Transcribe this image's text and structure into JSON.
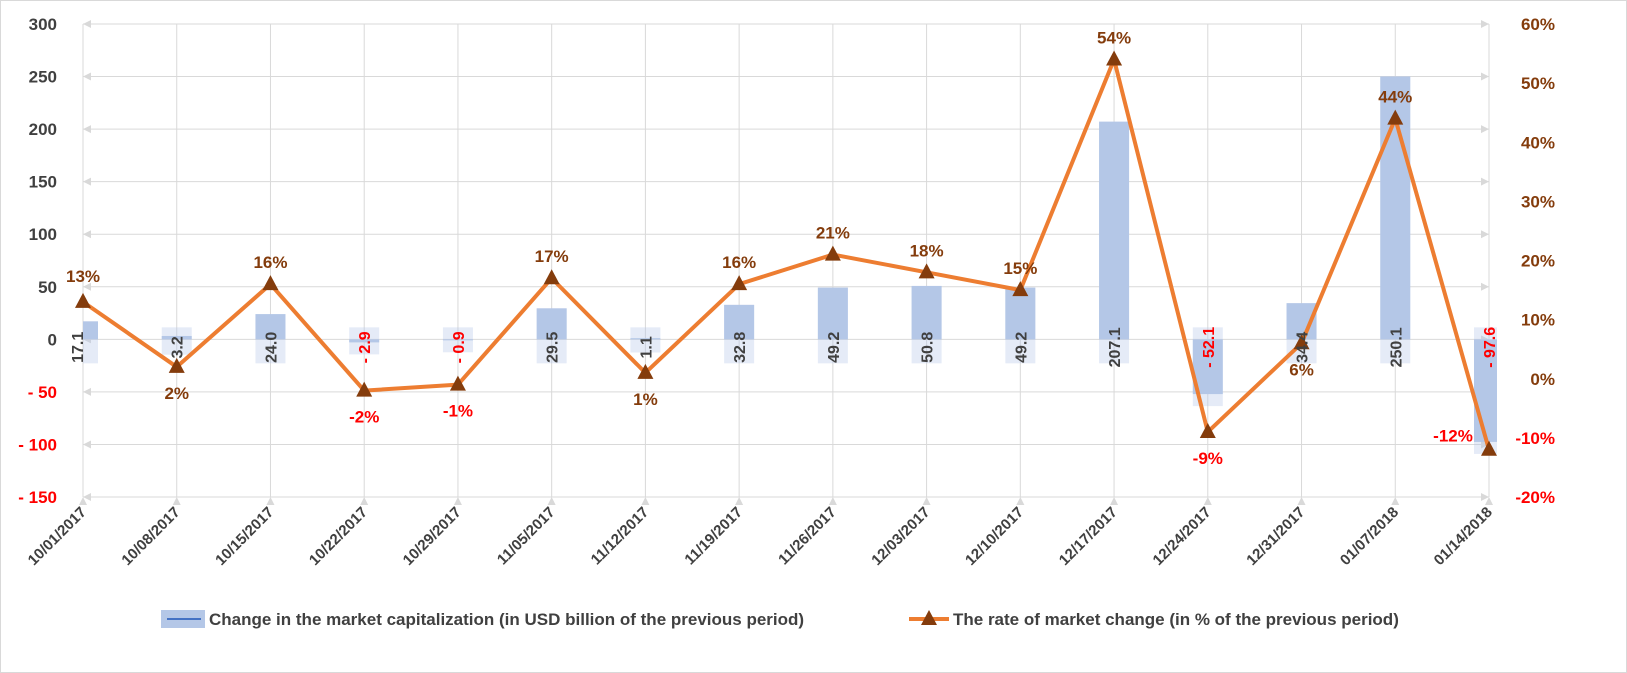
{
  "chart_data": {
    "type": "bar+line",
    "categories": [
      "10/01/2017",
      "10/08/2017",
      "10/15/2017",
      "10/22/2017",
      "10/29/2017",
      "11/05/2017",
      "11/12/2017",
      "11/19/2017",
      "11/26/2017",
      "12/03/2017",
      "12/10/2017",
      "12/17/2017",
      "12/24/2017",
      "12/31/2017",
      "01/07/2018",
      "01/14/2018"
    ],
    "series": [
      {
        "name": "Change in the market capitalization  (in USD billion of the previous period)",
        "type": "bar",
        "axis": "left",
        "values": [
          17.1,
          3.2,
          24.0,
          -2.9,
          -0.9,
          29.5,
          1.1,
          32.8,
          49.2,
          50.8,
          49.2,
          207.1,
          -52.1,
          34.4,
          250.1,
          -97.6
        ],
        "labels": [
          "17.1",
          "3.2",
          "24.0",
          "- 2.9",
          "- 0.9",
          "29.5",
          "1.1",
          "32.8",
          "49.2",
          "50.8",
          "49.2",
          "207.1",
          "- 52.1",
          "34.4",
          "250.1",
          "- 97.6"
        ],
        "color": "#b4c7e7"
      },
      {
        "name": "The rate of market change (in % of the previous period)",
        "type": "line",
        "axis": "right",
        "values": [
          13,
          2,
          16,
          -2,
          -1,
          17,
          1,
          16,
          21,
          18,
          15,
          54,
          -9,
          6,
          44,
          -12
        ],
        "labels": [
          "13%",
          "2%",
          "16%",
          "-2%",
          "-1%",
          "17%",
          "1%",
          "16%",
          "21%",
          "18%",
          "15%",
          "54%",
          "-9%",
          "6%",
          "44%",
          "-12%"
        ],
        "color": "#ed7d31",
        "marker_color": "#843c0c"
      }
    ],
    "y_left": {
      "lim": [
        -150,
        300
      ],
      "ticks": [
        300,
        250,
        200,
        150,
        100,
        50,
        0,
        -50,
        -100,
        -150
      ],
      "tick_labels": [
        "300",
        "250",
        "200",
        "150",
        "100",
        "50",
        "0",
        "- 50",
        "- 100",
        "- 150"
      ]
    },
    "y_right": {
      "lim": [
        -20,
        60
      ],
      "ticks": [
        60,
        50,
        40,
        30,
        20,
        10,
        0,
        -10,
        -20
      ],
      "tick_labels": [
        "60%",
        "50%",
        "40%",
        "30%",
        "20%",
        "10%",
        "0%",
        "-10%",
        "-20%"
      ]
    },
    "grid": true,
    "legend_position": "bottom"
  }
}
